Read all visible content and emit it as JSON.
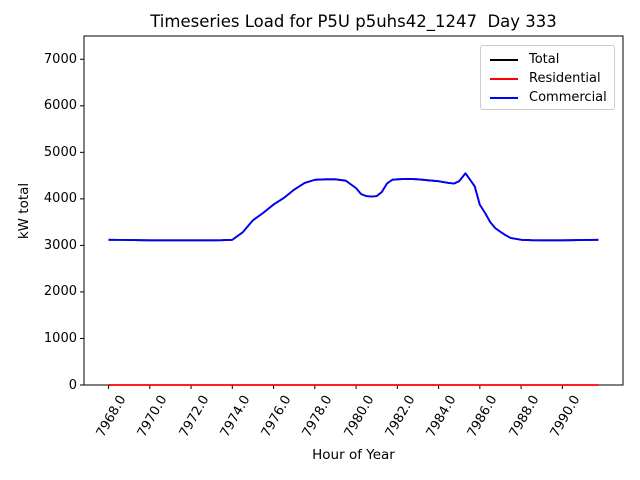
{
  "figure": {
    "title": "Timeseries Load for P5U p5uhs42_1247  Day 333",
    "xlabel": "Hour of Year",
    "ylabel": "kW total"
  },
  "legend": {
    "position": "upper-right",
    "entries": [
      {
        "label": "Total",
        "color": "#000000"
      },
      {
        "label": "Residential",
        "color": "#ff0000"
      },
      {
        "label": "Commercial",
        "color": "#0000ff"
      }
    ]
  },
  "chart_data": {
    "type": "line",
    "title": "Timeseries Load for P5U p5uhs42_1247  Day 333",
    "xlabel": "Hour of Year",
    "ylabel": "kW total",
    "xlim": [
      7966.81,
      7992.94
    ],
    "ylim": [
      0,
      7500
    ],
    "grid": false,
    "legend_position": "upper right",
    "x_tick_rotation_deg": 60,
    "x_ticks": [
      {
        "value": 7968,
        "label": "7968.0"
      },
      {
        "value": 7970,
        "label": "7970.0"
      },
      {
        "value": 7972,
        "label": "7972.0"
      },
      {
        "value": 7974,
        "label": "7974.0"
      },
      {
        "value": 7976,
        "label": "7976.0"
      },
      {
        "value": 7978,
        "label": "7978.0"
      },
      {
        "value": 7980,
        "label": "7980.0"
      },
      {
        "value": 7982,
        "label": "7982.0"
      },
      {
        "value": 7984,
        "label": "7984.0"
      },
      {
        "value": 7986,
        "label": "7986.0"
      },
      {
        "value": 7988,
        "label": "7988.0"
      },
      {
        "value": 7990,
        "label": "7990.0"
      }
    ],
    "y_ticks": [
      {
        "value": 0,
        "label": "0"
      },
      {
        "value": 1000,
        "label": "1000"
      },
      {
        "value": 2000,
        "label": "2000"
      },
      {
        "value": 3000,
        "label": "3000"
      },
      {
        "value": 4000,
        "label": "4000"
      },
      {
        "value": 5000,
        "label": "5000"
      },
      {
        "value": 6000,
        "label": "6000"
      },
      {
        "value": 7000,
        "label": "7000"
      }
    ],
    "series": [
      {
        "name": "Total",
        "color": "#000000",
        "points": [
          [
            7968.0,
            3120
          ],
          [
            7968.5,
            3118
          ],
          [
            7969.0,
            3115
          ],
          [
            7969.5,
            3112
          ],
          [
            7970.0,
            3110
          ],
          [
            7971.0,
            3110
          ],
          [
            7972.0,
            3110
          ],
          [
            7973.0,
            3110
          ],
          [
            7973.5,
            3112
          ],
          [
            7974.0,
            3120
          ],
          [
            7974.5,
            3280
          ],
          [
            7975.0,
            3540
          ],
          [
            7975.5,
            3700
          ],
          [
            7976.0,
            3880
          ],
          [
            7976.5,
            4020
          ],
          [
            7977.0,
            4200
          ],
          [
            7977.5,
            4340
          ],
          [
            7978.0,
            4410
          ],
          [
            7978.5,
            4420
          ],
          [
            7979.0,
            4420
          ],
          [
            7979.5,
            4390
          ],
          [
            7980.0,
            4230
          ],
          [
            7980.25,
            4100
          ],
          [
            7980.5,
            4060
          ],
          [
            7980.75,
            4050
          ],
          [
            7981.0,
            4060
          ],
          [
            7981.25,
            4150
          ],
          [
            7981.5,
            4330
          ],
          [
            7981.75,
            4410
          ],
          [
            7982.0,
            4420
          ],
          [
            7982.5,
            4430
          ],
          [
            7983.0,
            4420
          ],
          [
            7983.5,
            4400
          ],
          [
            7984.0,
            4380
          ],
          [
            7984.5,
            4340
          ],
          [
            7984.75,
            4330
          ],
          [
            7985.0,
            4380
          ],
          [
            7985.3,
            4550
          ],
          [
            7985.5,
            4430
          ],
          [
            7985.75,
            4270
          ],
          [
            7986.0,
            3875
          ],
          [
            7986.25,
            3700
          ],
          [
            7986.5,
            3500
          ],
          [
            7986.75,
            3370
          ],
          [
            7987.0,
            3290
          ],
          [
            7987.25,
            3220
          ],
          [
            7987.5,
            3160
          ],
          [
            7988.0,
            3120
          ],
          [
            7988.5,
            3112
          ],
          [
            7989.0,
            3110
          ],
          [
            7990.0,
            3110
          ],
          [
            7990.5,
            3112
          ],
          [
            7991.0,
            3115
          ],
          [
            7991.75,
            3120
          ]
        ]
      },
      {
        "name": "Residential",
        "color": "#ff0000",
        "points": [
          [
            7968.0,
            0
          ],
          [
            7991.75,
            0
          ]
        ]
      },
      {
        "name": "Commercial",
        "color": "#0000ff",
        "points": [
          [
            7968.0,
            3120
          ],
          [
            7968.5,
            3118
          ],
          [
            7969.0,
            3115
          ],
          [
            7969.5,
            3112
          ],
          [
            7970.0,
            3110
          ],
          [
            7971.0,
            3110
          ],
          [
            7972.0,
            3110
          ],
          [
            7973.0,
            3110
          ],
          [
            7973.5,
            3112
          ],
          [
            7974.0,
            3120
          ],
          [
            7974.5,
            3280
          ],
          [
            7975.0,
            3540
          ],
          [
            7975.5,
            3700
          ],
          [
            7976.0,
            3880
          ],
          [
            7976.5,
            4020
          ],
          [
            7977.0,
            4200
          ],
          [
            7977.5,
            4340
          ],
          [
            7978.0,
            4410
          ],
          [
            7978.5,
            4420
          ],
          [
            7979.0,
            4420
          ],
          [
            7979.5,
            4390
          ],
          [
            7980.0,
            4230
          ],
          [
            7980.25,
            4100
          ],
          [
            7980.5,
            4060
          ],
          [
            7980.75,
            4050
          ],
          [
            7981.0,
            4060
          ],
          [
            7981.25,
            4150
          ],
          [
            7981.5,
            4330
          ],
          [
            7981.75,
            4410
          ],
          [
            7982.0,
            4420
          ],
          [
            7982.5,
            4430
          ],
          [
            7983.0,
            4420
          ],
          [
            7983.5,
            4400
          ],
          [
            7984.0,
            4380
          ],
          [
            7984.5,
            4340
          ],
          [
            7984.75,
            4330
          ],
          [
            7985.0,
            4380
          ],
          [
            7985.3,
            4550
          ],
          [
            7985.5,
            4430
          ],
          [
            7985.75,
            4270
          ],
          [
            7986.0,
            3875
          ],
          [
            7986.25,
            3700
          ],
          [
            7986.5,
            3500
          ],
          [
            7986.75,
            3370
          ],
          [
            7987.0,
            3290
          ],
          [
            7987.25,
            3220
          ],
          [
            7987.5,
            3160
          ],
          [
            7988.0,
            3120
          ],
          [
            7988.5,
            3112
          ],
          [
            7989.0,
            3110
          ],
          [
            7990.0,
            3110
          ],
          [
            7990.5,
            3112
          ],
          [
            7991.0,
            3115
          ],
          [
            7991.75,
            3120
          ]
        ]
      }
    ]
  }
}
